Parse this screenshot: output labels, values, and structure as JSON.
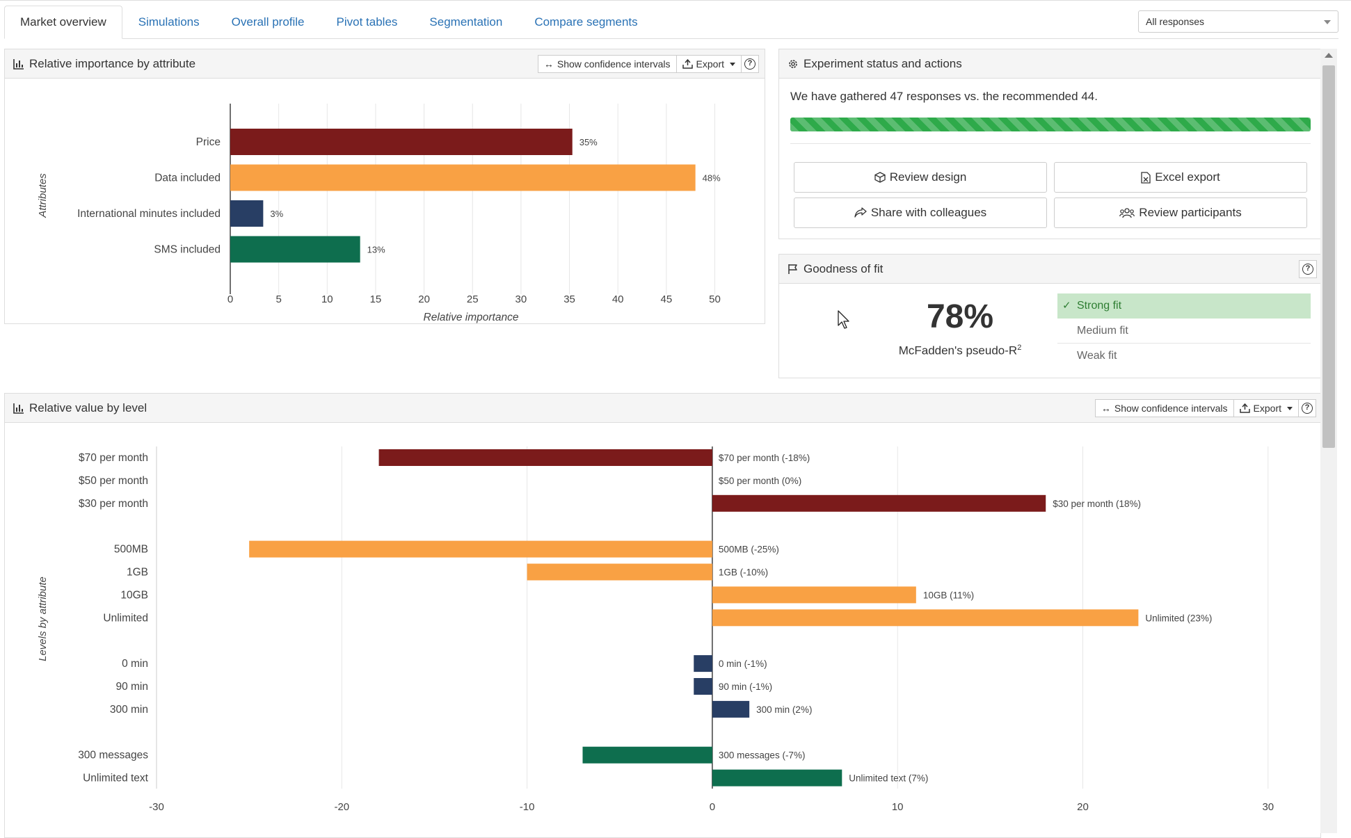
{
  "tabs": [
    {
      "label": "Market overview",
      "active": true
    },
    {
      "label": "Simulations",
      "active": false
    },
    {
      "label": "Overall profile",
      "active": false
    },
    {
      "label": "Pivot tables",
      "active": false
    },
    {
      "label": "Segmentation",
      "active": false
    },
    {
      "label": "Compare segments",
      "active": false
    }
  ],
  "filter": {
    "selected": "All responses"
  },
  "importance_panel": {
    "title": "Relative importance by attribute",
    "show_ci_label": "Show confidence intervals",
    "export_label": "Export",
    "help_label": "?"
  },
  "experiment_panel": {
    "title": "Experiment status and actions",
    "status_text": "We have gathered 47 responses vs. the recommended 44.",
    "progress": 1.0,
    "buttons": {
      "review_design": "Review design",
      "excel_export": "Excel export",
      "share": "Share with colleagues",
      "review_participants": "Review participants"
    }
  },
  "fit_panel": {
    "title": "Goodness of fit",
    "help_label": "?",
    "value": "78%",
    "label": "McFadden's pseudo-R",
    "label_sup": "2",
    "options": [
      {
        "label": "Strong fit",
        "active": true
      },
      {
        "label": "Medium fit",
        "active": false
      },
      {
        "label": "Weak fit",
        "active": false
      }
    ]
  },
  "value_panel": {
    "title": "Relative value by level",
    "show_ci_label": "Show confidence intervals",
    "export_label": "Export",
    "help_label": "?"
  },
  "colors": {
    "price": "#7b1b1b",
    "data": "#f9a144",
    "minutes": "#283e64",
    "sms": "#0e6e4e",
    "accent": "#2a72b5",
    "progress": "#2eaa4a"
  },
  "chart_data": [
    {
      "type": "bar",
      "orientation": "horizontal",
      "categories": [
        "Price",
        "Data included",
        "International minutes included",
        "SMS included"
      ],
      "values": [
        35.3,
        48,
        3.4,
        13.4
      ],
      "labels": [
        "35%",
        "48%",
        "3%",
        "13%"
      ],
      "colors": [
        "#7b1b1b",
        "#f9a144",
        "#283e64",
        "#0e6e4e"
      ],
      "xlabel": "Relative importance",
      "ylabel": "Attributes",
      "xlim": [
        0,
        50
      ],
      "xticks": [
        0,
        5,
        10,
        15,
        20,
        25,
        30,
        35,
        40,
        45,
        50
      ],
      "grid": true
    },
    {
      "type": "bar",
      "orientation": "horizontal",
      "ylabel": "Levels by attribute",
      "xlim": [
        -30,
        30
      ],
      "xticks": [
        -30,
        -20,
        -10,
        0,
        10,
        20,
        30
      ],
      "grid": true,
      "groups": [
        {
          "color": "#7b1b1b",
          "levels": [
            {
              "name": "$70 per month",
              "value": -18,
              "label": "$70 per month (-18%)"
            },
            {
              "name": "$50 per month",
              "value": 0,
              "label": "$50 per month (0%)"
            },
            {
              "name": "$30 per month",
              "value": 18,
              "label": "$30 per month (18%)"
            }
          ]
        },
        {
          "color": "#f9a144",
          "levels": [
            {
              "name": "500MB",
              "value": -25,
              "label": "500MB (-25%)"
            },
            {
              "name": "1GB",
              "value": -10,
              "label": "1GB (-10%)"
            },
            {
              "name": "10GB",
              "value": 11,
              "label": "10GB (11%)"
            },
            {
              "name": "Unlimited",
              "value": 23,
              "label": "Unlimited (23%)"
            }
          ]
        },
        {
          "color": "#283e64",
          "levels": [
            {
              "name": "0 min",
              "value": -1,
              "label": "0 min (-1%)"
            },
            {
              "name": "90 min",
              "value": -1,
              "label": "90 min (-1%)"
            },
            {
              "name": "300 min",
              "value": 2,
              "label": "300 min (2%)"
            }
          ]
        },
        {
          "color": "#0e6e4e",
          "levels": [
            {
              "name": "300 messages",
              "value": -7,
              "label": "300 messages (-7%)"
            },
            {
              "name": "Unlimited text",
              "value": 7,
              "label": "Unlimited text (7%)"
            }
          ]
        }
      ]
    }
  ]
}
